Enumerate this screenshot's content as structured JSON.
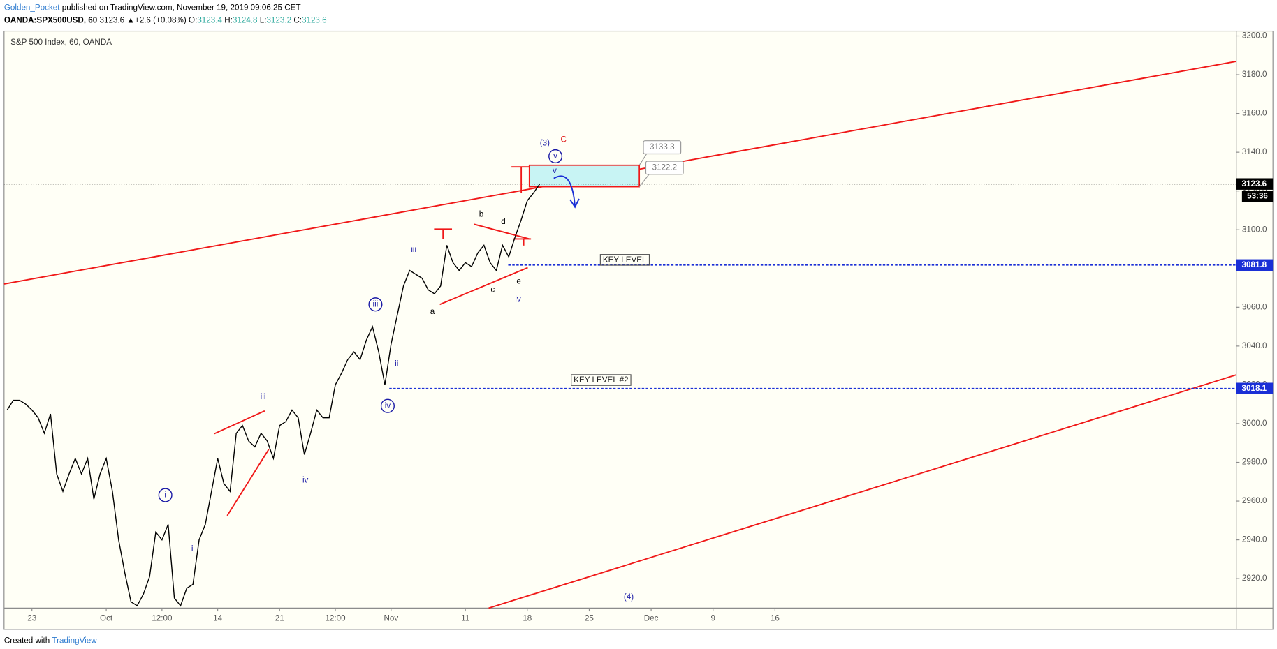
{
  "header": {
    "author": "Golden_Pocket",
    "published": "published on TradingView.com, November 19, 2019 09:06:25 CET",
    "symbol": "OANDA:SPX500USD, 60",
    "last": "3123.6",
    "change_icon": "▲",
    "change": "+2.6 (+0.08%)",
    "ohlc": [
      {
        "label": "O:",
        "value": "3123.4"
      },
      {
        "label": "H:",
        "value": "3124.8"
      },
      {
        "label": "L:",
        "value": "3123.2"
      },
      {
        "label": "C:",
        "value": "3123.6"
      }
    ]
  },
  "chart_data": {
    "type": "line",
    "title": "S&P 500 Index, 60, OANDA",
    "color": "#000000",
    "categories": [
      null,
      null,
      null,
      null,
      "23",
      null,
      null,
      null,
      null,
      null,
      null,
      null,
      null,
      null,
      null,
      null,
      "Oct",
      null,
      null,
      null,
      null,
      null,
      null,
      null,
      null,
      "12:00",
      null,
      null,
      null,
      null,
      null,
      null,
      null,
      null,
      "14",
      null,
      null,
      null,
      null,
      null,
      null,
      null,
      null,
      null,
      "21",
      null,
      null,
      null,
      null,
      null,
      null,
      null,
      null,
      "12:00",
      null,
      null,
      null,
      null,
      null,
      null,
      null,
      null,
      "Nov",
      null,
      null,
      null,
      null,
      null,
      null,
      null,
      null,
      null,
      null,
      null,
      "11",
      null,
      null,
      null,
      null,
      null,
      null,
      null,
      null,
      null,
      "18",
      null,
      null,
      null,
      null,
      null,
      null,
      null,
      null,
      null,
      "25",
      null,
      null,
      null,
      null,
      null,
      null,
      null,
      null,
      null,
      "Dec",
      null,
      null,
      null,
      null,
      null,
      null,
      null,
      null,
      null,
      "9",
      null,
      null,
      null,
      null,
      null,
      null,
      null,
      null,
      null,
      "16",
      null,
      null,
      null,
      null,
      null,
      null,
      null,
      null,
      null,
      null,
      null,
      null,
      null,
      null,
      null,
      null,
      null,
      null,
      null,
      null,
      null,
      null,
      null,
      null,
      null,
      null,
      null,
      null,
      null,
      null,
      null,
      null,
      null,
      null,
      null,
      null,
      null,
      null,
      null,
      null,
      null,
      null,
      null,
      null,
      null,
      null,
      null,
      null,
      null,
      null,
      null,
      null,
      null,
      null,
      null,
      null,
      null,
      null,
      null,
      null,
      null,
      null,
      null,
      null,
      null,
      null,
      null,
      null,
      null,
      null,
      null,
      null,
      null,
      null
    ],
    "values": [
      3007,
      3012,
      3012,
      3010,
      3007,
      3003,
      2995,
      3005,
      2974,
      2965,
      2974,
      2982,
      2974,
      2982,
      2961,
      2974,
      2982,
      2965,
      2940,
      2923,
      2908,
      2906,
      2912,
      2921,
      2944,
      2940,
      2948,
      2910,
      2906,
      2915,
      2917,
      2940,
      2948,
      2965,
      2982,
      2969,
      2965,
      2995,
      2999,
      2991,
      2988,
      2995,
      2991,
      2982,
      2999,
      3001,
      3007,
      3003,
      2984,
      2995,
      3007,
      3003,
      3003,
      3020,
      3026,
      3033,
      3037,
      3033,
      3043,
      3050,
      3037,
      3020,
      3041,
      3056,
      3071,
      3079,
      3077,
      3075,
      3069,
      3067,
      3071,
      3092,
      3083,
      3079,
      3083,
      3081,
      3088,
      3092,
      3083,
      3079,
      3092,
      3086,
      3096,
      3105,
      3115,
      3119,
      3123.6,
      null,
      null,
      null,
      null,
      null,
      null,
      null,
      null,
      null,
      null,
      null,
      null,
      null,
      null,
      null,
      null,
      null,
      null,
      null,
      null,
      null,
      null,
      null,
      null,
      null,
      null,
      null,
      null,
      null,
      null,
      null,
      null,
      null,
      null,
      null,
      null,
      null,
      null,
      null,
      null,
      null,
      null,
      null,
      null,
      null,
      null,
      null,
      null,
      null,
      null,
      null,
      null,
      null,
      null,
      null,
      null,
      null,
      null,
      null,
      null,
      null,
      null,
      null,
      null,
      null,
      null,
      null,
      null,
      null,
      null,
      null,
      null,
      null,
      null,
      null,
      null,
      null,
      null,
      null,
      null,
      null,
      null,
      null,
      null,
      null,
      null,
      null,
      null,
      null,
      null,
      null,
      null,
      null,
      null,
      null,
      null,
      null,
      null,
      null,
      null,
      null,
      null,
      null,
      null,
      null,
      null,
      null,
      null,
      null,
      null,
      null,
      null
    ],
    "ylim": [
      2904.8,
      3202.5
    ],
    "yticks": [
      {
        "value": 2920,
        "label": "2920.0"
      },
      {
        "value": 2940,
        "label": "2940.0"
      },
      {
        "value": 2960,
        "label": "2960.0"
      },
      {
        "value": 2980,
        "label": "2980.0"
      },
      {
        "value": 3000,
        "label": "3000.0"
      },
      {
        "value": 3020,
        "label": "3020.0"
      },
      {
        "value": 3040,
        "label": "3040.0"
      },
      {
        "value": 3060,
        "label": "3060.0"
      },
      {
        "value": 3080,
        "label": "3080.0"
      },
      {
        "value": 3100,
        "label": "3100.0"
      },
      {
        "value": 3120,
        "label": "3120.0"
      },
      {
        "value": 3140,
        "label": "3140.0"
      },
      {
        "value": 3160,
        "label": "3160.0"
      },
      {
        "value": 3180,
        "label": "3180.0"
      },
      {
        "value": 3200,
        "label": "3200.0"
      }
    ],
    "grid": false,
    "last_price": 3123.6,
    "countdown": "53:36",
    "key_levels": [
      {
        "name": "KEY LEVEL",
        "value": 3081.8,
        "color": "#1a2fd6"
      },
      {
        "name": "KEY LEVEL #2",
        "value": 3018.1,
        "color": "#1a2fd6"
      }
    ],
    "target_zone": {
      "high": 3133.3,
      "low": 3122.2
    },
    "annotations": [
      {
        "text": "(3)",
        "color": "#1a1aa6"
      },
      {
        "text": "C",
        "color": "#e01818"
      },
      {
        "text": "v",
        "color": "#1a1aa6",
        "circled": true
      },
      {
        "text": "v",
        "color": "#1a1aa6"
      },
      {
        "text": "b",
        "color": "#000000"
      },
      {
        "text": "d",
        "color": "#000000"
      },
      {
        "text": "c",
        "color": "#000000"
      },
      {
        "text": "a",
        "color": "#000000"
      },
      {
        "text": "e",
        "color": "#000000"
      },
      {
        "text": "iv",
        "color": "#1a1aa6"
      },
      {
        "text": "iii",
        "color": "#1a1aa6"
      },
      {
        "text": "iii",
        "color": "#1a1aa6",
        "circled": true
      },
      {
        "text": "i",
        "color": "#1a1aa6"
      },
      {
        "text": "ii",
        "color": "#1a1aa6"
      },
      {
        "text": "iv",
        "color": "#1a1aa6",
        "circled": true
      },
      {
        "text": "iii",
        "color": "#1a1aa6"
      },
      {
        "text": "iv",
        "color": "#1a1aa6"
      },
      {
        "text": "i",
        "color": "#1a1aa6",
        "circled": true
      },
      {
        "text": "i",
        "color": "#1a1aa6"
      },
      {
        "text": "(4)",
        "color": "#1a1aa6"
      }
    ]
  },
  "footer": {
    "created_with": "Created with",
    "brand": "TradingView"
  }
}
